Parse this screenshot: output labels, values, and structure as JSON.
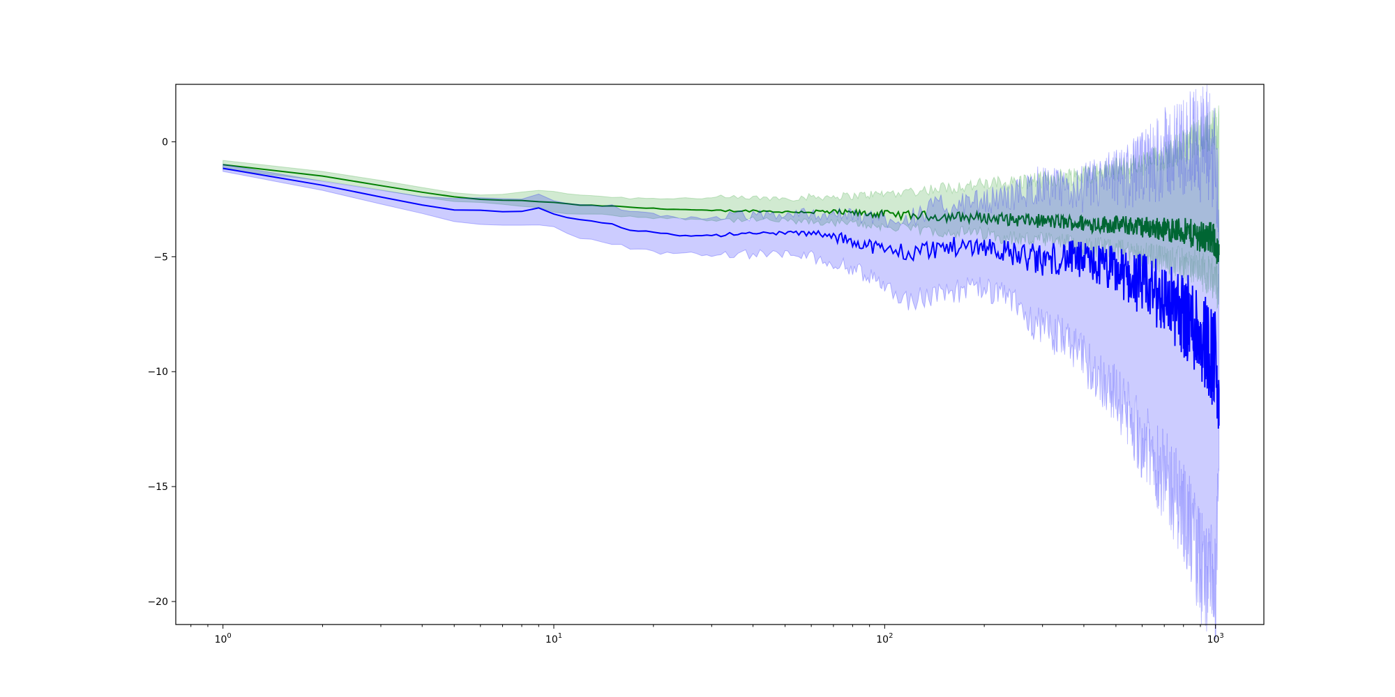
{
  "chart_data": {
    "type": "line",
    "title": "",
    "xlabel": "",
    "ylabel": "",
    "xscale": "log",
    "xlim": [
      0.72,
      1400
    ],
    "ylim": [
      -21,
      2.5
    ],
    "grid": false,
    "legend": "none",
    "x_ticks": [
      {
        "value": 1,
        "base": "10",
        "exp": "0"
      },
      {
        "value": 10,
        "base": "10",
        "exp": "1"
      },
      {
        "value": 100,
        "base": "10",
        "exp": "2"
      },
      {
        "value": 1000,
        "base": "10",
        "exp": "3"
      }
    ],
    "y_ticks": [
      {
        "value": 0,
        "label": "0"
      },
      {
        "value": -5,
        "label": "−5"
      },
      {
        "value": -10,
        "label": "−10"
      },
      {
        "value": -15,
        "label": "−15"
      },
      {
        "value": -20,
        "label": "−20"
      }
    ],
    "series": [
      {
        "color": "#008000",
        "band_color": "#2ca02c",
        "x": [
          1,
          2,
          3,
          4,
          5,
          6,
          7,
          8,
          9,
          10,
          12,
          15,
          17,
          20,
          25,
          30,
          40,
          50,
          60,
          80,
          100,
          120,
          150,
          200,
          250,
          300,
          350,
          400,
          500,
          600,
          700,
          800,
          900,
          1000,
          1024
        ],
        "mean": [
          -1.0,
          -1.5,
          -1.9,
          -2.2,
          -2.4,
          -2.5,
          -2.55,
          -2.55,
          -2.6,
          -2.65,
          -2.75,
          -2.8,
          -2.85,
          -2.9,
          -2.95,
          -3.0,
          -3.0,
          -3.05,
          -3.05,
          -3.1,
          -3.15,
          -3.2,
          -3.25,
          -3.3,
          -3.4,
          -3.45,
          -3.5,
          -3.55,
          -3.6,
          -3.7,
          -3.8,
          -3.9,
          -4.1,
          -4.3,
          -5.2
        ],
        "lower": [
          -1.2,
          -1.7,
          -2.1,
          -2.4,
          -2.6,
          -2.65,
          -2.7,
          -2.8,
          -2.9,
          -3.05,
          -3.15,
          -3.2,
          -3.25,
          -3.3,
          -3.35,
          -3.4,
          -3.4,
          -3.45,
          -3.5,
          -3.55,
          -3.7,
          -3.8,
          -3.9,
          -4.0,
          -4.2,
          -4.3,
          -4.4,
          -4.5,
          -4.7,
          -4.9,
          -5.1,
          -5.3,
          -5.6,
          -6.0,
          -6.5
        ],
        "upper": [
          -0.8,
          -1.3,
          -1.7,
          -2.0,
          -2.2,
          -2.3,
          -2.3,
          -2.2,
          -2.1,
          -2.15,
          -2.3,
          -2.4,
          -2.45,
          -2.45,
          -2.45,
          -2.45,
          -2.45,
          -2.45,
          -2.4,
          -2.35,
          -2.25,
          -2.15,
          -2.0,
          -1.85,
          -1.75,
          -1.65,
          -1.5,
          -1.4,
          -1.2,
          -1.0,
          -0.6,
          -0.2,
          0.3,
          0.6,
          0.7
        ]
      },
      {
        "color": "#0000ff",
        "band_color": "#0000ff",
        "x": [
          1,
          2,
          3,
          4,
          5,
          6,
          7,
          8,
          9,
          10,
          12,
          15,
          17,
          20,
          25,
          30,
          40,
          50,
          60,
          80,
          100,
          120,
          150,
          200,
          250,
          300,
          350,
          400,
          500,
          600,
          700,
          800,
          900,
          1000,
          1024
        ],
        "mean": [
          -1.15,
          -1.9,
          -2.4,
          -2.75,
          -2.95,
          -3.0,
          -3.05,
          -3.05,
          -2.9,
          -3.15,
          -3.4,
          -3.6,
          -3.85,
          -3.9,
          -4.1,
          -4.05,
          -4.0,
          -3.95,
          -4.0,
          -4.3,
          -4.7,
          -4.8,
          -4.6,
          -4.5,
          -4.9,
          -5.2,
          -5.0,
          -5.2,
          -5.6,
          -6.2,
          -6.8,
          -7.5,
          -8.3,
          -9.5,
          -11.8
        ],
        "lower": [
          -1.3,
          -2.1,
          -2.7,
          -3.1,
          -3.45,
          -3.55,
          -3.6,
          -3.6,
          -3.55,
          -3.7,
          -4.2,
          -4.5,
          -4.6,
          -4.8,
          -4.85,
          -4.9,
          -4.9,
          -4.9,
          -5.0,
          -5.5,
          -6.2,
          -7.0,
          -6.5,
          -6.4,
          -7.0,
          -8.2,
          -8.5,
          -9.5,
          -11.0,
          -13.0,
          -14.5,
          -16.0,
          -18.5,
          -19.7,
          -14.0
        ],
        "upper": [
          -1.0,
          -1.7,
          -2.1,
          -2.4,
          -2.5,
          -2.45,
          -2.5,
          -2.5,
          -2.25,
          -2.6,
          -2.65,
          -2.75,
          -3.0,
          -3.2,
          -3.3,
          -3.3,
          -3.2,
          -3.15,
          -3.1,
          -3.2,
          -3.3,
          -3.2,
          -2.8,
          -2.6,
          -2.3,
          -1.8,
          -2.2,
          -2.0,
          -1.6,
          -1.2,
          -0.5,
          -0.2,
          0.0,
          -0.5,
          -3.0
        ]
      }
    ]
  }
}
